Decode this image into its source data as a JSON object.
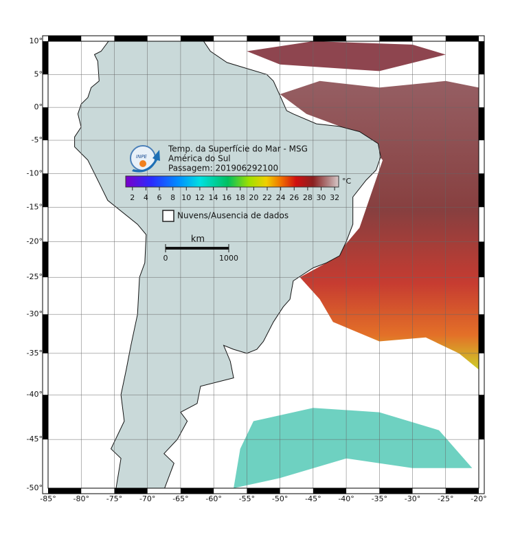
{
  "map": {
    "lonlim": [
      -85,
      -20
    ],
    "latlim": [
      -50,
      10
    ],
    "lon_ticks": [
      {
        "value": -85,
        "label": "-85°"
      },
      {
        "value": -80,
        "label": "-80°"
      },
      {
        "value": -75,
        "label": "-75°"
      },
      {
        "value": -70,
        "label": "-70°"
      },
      {
        "value": -65,
        "label": "-65°"
      },
      {
        "value": -60,
        "label": "-60°"
      },
      {
        "value": -55,
        "label": "-55°"
      },
      {
        "value": -50,
        "label": "-50°"
      },
      {
        "value": -45,
        "label": "-45°"
      },
      {
        "value": -40,
        "label": "-40°"
      },
      {
        "value": -35,
        "label": "-35°"
      },
      {
        "value": -30,
        "label": "-30°"
      },
      {
        "value": -25,
        "label": "-25°"
      },
      {
        "value": -20,
        "label": "-20°"
      }
    ],
    "lat_ticks": [
      {
        "value": 10,
        "label": "10°"
      },
      {
        "value": 5,
        "label": "5°"
      },
      {
        "value": 0,
        "label": "0°"
      },
      {
        "value": -5,
        "label": "-5°"
      },
      {
        "value": -10,
        "label": "-10°"
      },
      {
        "value": -15,
        "label": "-15°"
      },
      {
        "value": -20,
        "label": "-20°"
      },
      {
        "value": -25,
        "label": "-25°"
      },
      {
        "value": -30,
        "label": "-30°"
      },
      {
        "value": -35,
        "label": "-35°"
      },
      {
        "value": -40,
        "label": "-40°"
      },
      {
        "value": -45,
        "label": "-45°"
      },
      {
        "value": -50,
        "label": "-50°"
      }
    ],
    "logo": "INPE",
    "title_lines": [
      "Temp. da Superfície do Mar - MSG",
      "América do Sul",
      "Passagem: 201906292100"
    ],
    "colorbar": {
      "unit": "°C",
      "lim": [
        1,
        32.6
      ],
      "ticks": [
        2,
        4,
        6,
        8,
        10,
        12,
        14,
        16,
        18,
        20,
        22,
        24,
        26,
        28,
        30,
        32
      ]
    },
    "legend": {
      "label": "Nuvens/Ausencia de dados"
    },
    "scale_bar": {
      "unit": "km",
      "ticks": [
        0,
        1000
      ]
    }
  }
}
